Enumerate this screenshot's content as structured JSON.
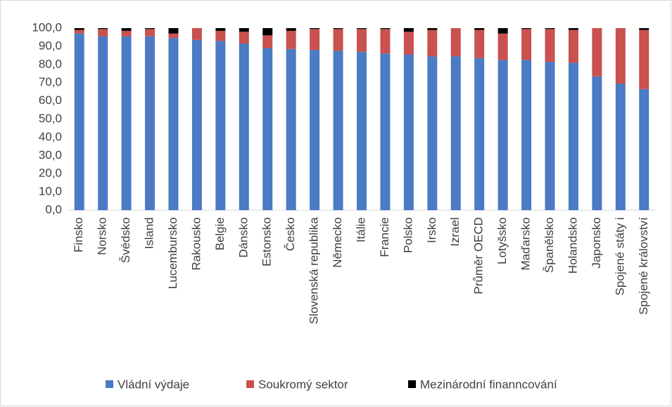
{
  "chart_data": {
    "type": "stacked-bar",
    "categories": [
      "Finsko",
      "Norsko",
      "Švédsko",
      "Island",
      "Lucembursko",
      "Rakousko",
      "Belgie",
      "Dánsko",
      "Estonsko",
      "Česko",
      "Slovenská republika",
      "Německo",
      "Itálie",
      "Francie",
      "Polsko",
      "Irsko",
      "Izrael",
      "Průměr OECD",
      "Lotyšsko",
      "Maďarsko",
      "Španělsko",
      "Holandsko",
      "Japonsko",
      "Spojené státy i",
      "Spojené království"
    ],
    "series": [
      {
        "name": "Vládní výdaje",
        "color": "#4a7bc4",
        "values": [
          97,
          95.5,
          95.5,
          95.5,
          94.5,
          93.5,
          93,
          91.5,
          89,
          88.5,
          88,
          87.5,
          87,
          86,
          85.5,
          84.5,
          84.5,
          83.5,
          82.5,
          82.5,
          81.5,
          81,
          73.5,
          69.5,
          66.5
        ]
      },
      {
        "name": "Soukromý sektor",
        "color": "#c9514e",
        "values": [
          2,
          4,
          3,
          4,
          2.5,
          6.5,
          5.5,
          6.5,
          7,
          10,
          11.5,
          12,
          12.5,
          13.5,
          12.5,
          14.5,
          15.5,
          15.5,
          14.5,
          17,
          18,
          18,
          26.5,
          30.5,
          32.5
        ]
      },
      {
        "name": "Mezinárodní finanncování",
        "color": "#000000",
        "values": [
          1,
          0.5,
          1.5,
          0.5,
          3,
          0,
          1.5,
          2,
          4,
          1.5,
          0.5,
          0.5,
          0.5,
          0.5,
          2,
          1,
          0,
          1,
          3,
          0.5,
          0.5,
          1,
          0,
          0,
          1
        ]
      }
    ],
    "ylim": [
      0,
      100
    ],
    "yticks": [
      {
        "value": 0,
        "label": "0,0"
      },
      {
        "value": 10,
        "label": "10,0"
      },
      {
        "value": 20,
        "label": "20,0"
      },
      {
        "value": 30,
        "label": "30,0"
      },
      {
        "value": 40,
        "label": "40,0"
      },
      {
        "value": 50,
        "label": "50,0"
      },
      {
        "value": 60,
        "label": "60,0"
      },
      {
        "value": 70,
        "label": "70,0"
      },
      {
        "value": 80,
        "label": "80,0"
      },
      {
        "value": 90,
        "label": "90,0"
      },
      {
        "value": 100,
        "label": "100,0"
      }
    ],
    "legend": "bottom"
  }
}
